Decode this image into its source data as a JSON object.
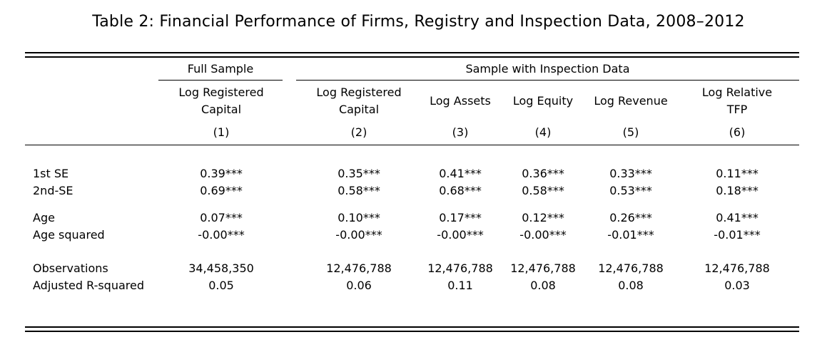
{
  "title": "Table 2: Financial Performance of Firms, Registry and Inspection Data, 2008–2012",
  "groups": {
    "full": "Full Sample",
    "inspection": "Sample with Inspection Data"
  },
  "columns": [
    {
      "line1": "Log Registered",
      "line2": "Capital",
      "num": "(1)"
    },
    {
      "line1": "Log Registered",
      "line2": "Capital",
      "num": "(2)"
    },
    {
      "line1": "Log Assets",
      "line2": "",
      "num": "(3)"
    },
    {
      "line1": "Log  Equity",
      "line2": "",
      "num": "(4)"
    },
    {
      "line1": "Log Revenue",
      "line2": "",
      "num": "(5)"
    },
    {
      "line1": "Log Relative",
      "line2": "TFP",
      "num": "(6)"
    }
  ],
  "rows": [
    {
      "label": "1st SE",
      "values": [
        "0.39***",
        "0.35***",
        "0.41***",
        "0.36***",
        "0.33***",
        "0.11***"
      ]
    },
    {
      "label": "2nd-SE",
      "values": [
        "0.69***",
        "0.58***",
        "0.68***",
        "0.58***",
        "0.53***",
        "0.18***"
      ]
    },
    {
      "label": "Age",
      "values": [
        "0.07***",
        "0.10***",
        "0.17***",
        "0.12***",
        "0.26***",
        "0.41***"
      ]
    },
    {
      "label": "Age squared",
      "values": [
        "-0.00***",
        "-0.00***",
        "-0.00***",
        "-0.00***",
        "-0.01***",
        "-0.01***"
      ]
    },
    {
      "label": "Observations",
      "values": [
        "34,458,350",
        "12,476,788",
        "12,476,788",
        "12,476,788",
        "12,476,788",
        "12,476,788"
      ]
    },
    {
      "label": "Adjusted  R-squared",
      "values": [
        "0.05",
        "0.06",
        "0.11",
        "0.08",
        "0.08",
        "0.03"
      ]
    }
  ]
}
